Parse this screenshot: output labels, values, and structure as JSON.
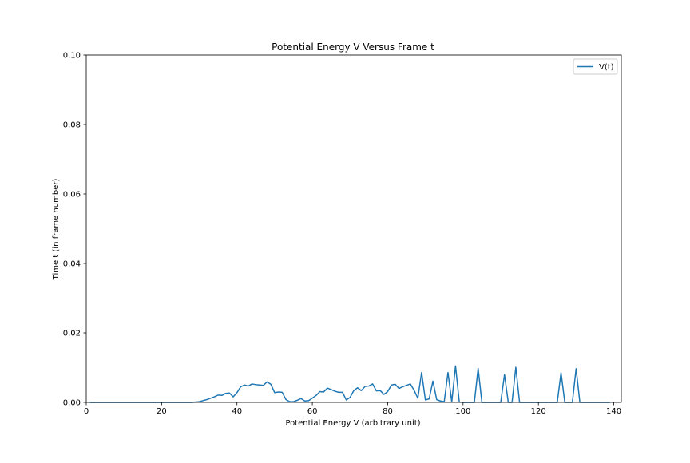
{
  "chart_data": {
    "type": "line",
    "title": "Potential Energy V Versus Frame t",
    "xlabel": "Potential Energy V (arbitrary unit)",
    "ylabel": "Time t (in frame number)",
    "xlim": [
      0,
      142
    ],
    "ylim": [
      0,
      0.1
    ],
    "xticks": [
      0,
      20,
      40,
      60,
      80,
      100,
      120,
      140
    ],
    "yticks": [
      0.0,
      0.02,
      0.04,
      0.06,
      0.08,
      0.1
    ],
    "ytick_labels": [
      "0.00",
      "0.02",
      "0.04",
      "0.06",
      "0.08",
      "0.10"
    ],
    "grid": false,
    "legend_position": "top-right",
    "series": [
      {
        "name": "V(t)",
        "color": "#1f77b4",
        "x": [
          1,
          5,
          8,
          10,
          12,
          15,
          20,
          25,
          28,
          30,
          31,
          32,
          33,
          34,
          35,
          36,
          37,
          38,
          39,
          40,
          41,
          42,
          43,
          44,
          45,
          46,
          47,
          48,
          49,
          50,
          51,
          52,
          53,
          54,
          55,
          56,
          57,
          58,
          59,
          60,
          61,
          62,
          63,
          64,
          65,
          66,
          67,
          68,
          69,
          70,
          71,
          72,
          73,
          74,
          75,
          76,
          77,
          78,
          79,
          80,
          81,
          82,
          83,
          84,
          85,
          86,
          87,
          88,
          89,
          90,
          91,
          92,
          93,
          94,
          95,
          96,
          97,
          98,
          99,
          100,
          101,
          102,
          103,
          104,
          105,
          106,
          107,
          108,
          109,
          110,
          111,
          112,
          113,
          114,
          115,
          116,
          117,
          118,
          119,
          120,
          121,
          122,
          123,
          124,
          125,
          126,
          127,
          128,
          129,
          130,
          131,
          132,
          133,
          134,
          135,
          136,
          137,
          138,
          139
        ],
        "y": [
          0,
          0,
          0,
          0,
          0,
          0,
          0,
          0,
          0,
          0.0002,
          0.0005,
          0.0008,
          0.0012,
          0.0016,
          0.0021,
          0.002,
          0.0026,
          0.0027,
          0.0016,
          0.0028,
          0.0045,
          0.005,
          0.0047,
          0.0053,
          0.0051,
          0.005,
          0.0049,
          0.0059,
          0.0052,
          0.0028,
          0.003,
          0.0029,
          0.0008,
          0.0002,
          0.0002,
          0.0006,
          0.0011,
          0.0004,
          0.0005,
          0.0012,
          0.002,
          0.0031,
          0.003,
          0.0041,
          0.0037,
          0.0032,
          0.0029,
          0.0029,
          0.0007,
          0.0014,
          0.0034,
          0.0042,
          0.0034,
          0.0046,
          0.0047,
          0.0053,
          0.0033,
          0.0034,
          0.0023,
          0.0031,
          0.005,
          0.0052,
          0.004,
          0.0045,
          0.0049,
          0.0053,
          0.0035,
          0.0012,
          0.0086,
          0.0007,
          0.001,
          0.0061,
          0.0008,
          0.0004,
          0.0002,
          0.0086,
          0.0001,
          0.0105,
          0.0001,
          0,
          0,
          0,
          0,
          0.0098,
          0,
          0,
          0,
          0,
          0,
          0,
          0.008,
          0,
          0,
          0.0101,
          0,
          0,
          0,
          0,
          0,
          0,
          0,
          0,
          0,
          0,
          0,
          0.0085,
          0,
          0,
          0,
          0.0097,
          0,
          0,
          0,
          0,
          0,
          0,
          0,
          0,
          0
        ]
      }
    ]
  }
}
